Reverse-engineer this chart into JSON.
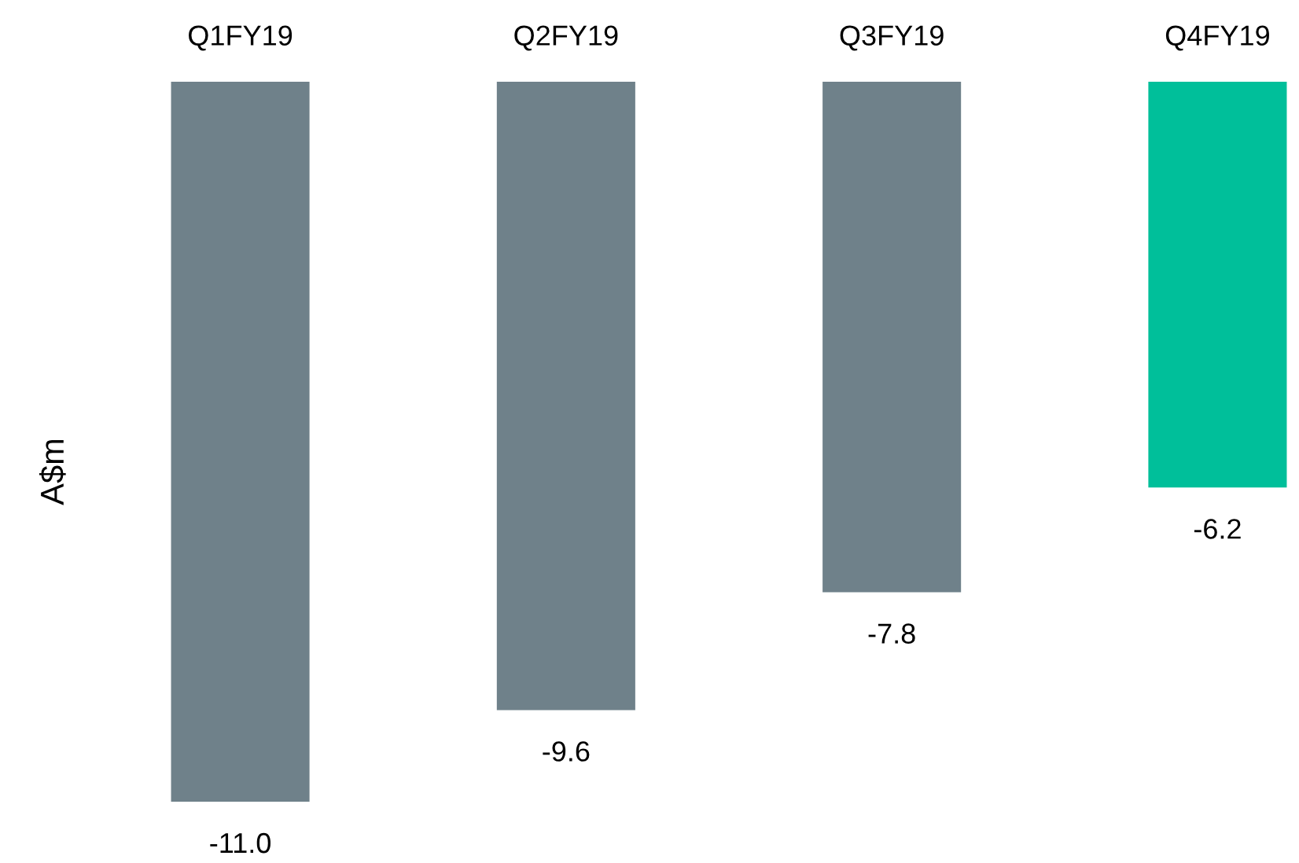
{
  "chart_data": {
    "type": "bar",
    "ylabel": "A$m",
    "categories": [
      "Q1FY19",
      "Q2FY19",
      "Q3FY19",
      "Q4FY19"
    ],
    "values": [
      -11.0,
      -9.6,
      -7.8,
      -6.2
    ],
    "colors": [
      "#6f818a",
      "#6f818a",
      "#6f818a",
      "#00bf9a"
    ],
    "value_labels": [
      "-11.0",
      "-9.6",
      "-7.8",
      "-6.2"
    ],
    "grid": false,
    "legend": false
  }
}
